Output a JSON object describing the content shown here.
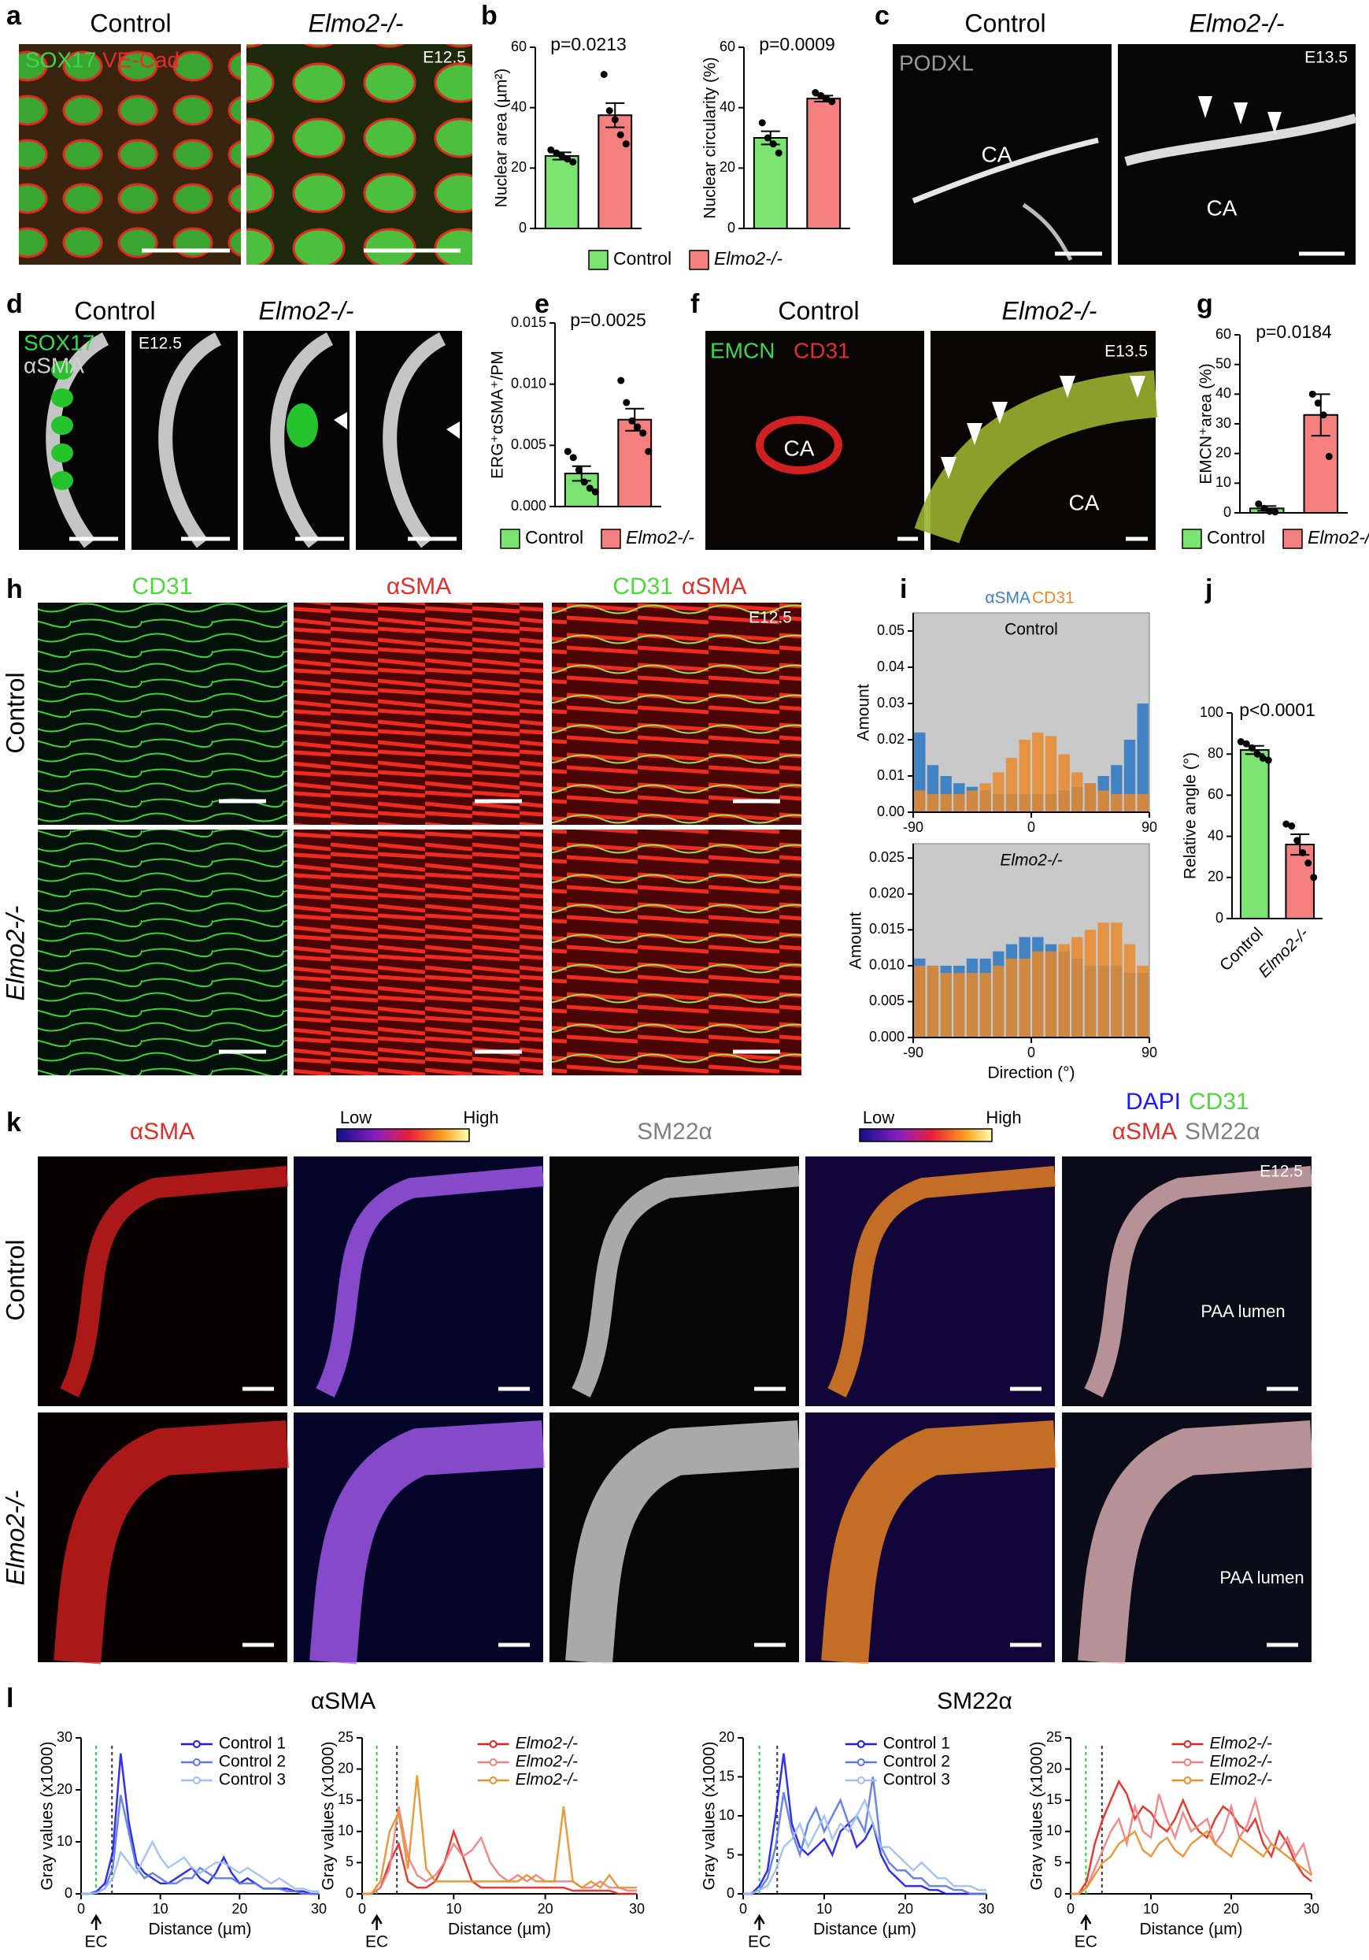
{
  "figure": {
    "panel_letters": [
      "a",
      "b",
      "c",
      "d",
      "e",
      "f",
      "g",
      "h",
      "i",
      "j",
      "k",
      "l"
    ],
    "a": {
      "control": "Control",
      "mutant": "Elmo2-/-",
      "stain1": "SOX17",
      "stain2": "VE-Cad",
      "stage": "E12.5"
    },
    "c": {
      "control": "Control",
      "mutant": "Elmo2-/-",
      "stain": "PODXL",
      "stage": "E13.5",
      "ca1": "CA",
      "ca2": "CA"
    },
    "d": {
      "control": "Control",
      "mutant": "Elmo2-/-",
      "stain1": "SOX17",
      "stain2": "αSMA",
      "stage": "E12.5"
    },
    "f": {
      "control": "Control",
      "mutant": "Elmo2-/-",
      "stain1": "EMCN",
      "stain2": "CD31",
      "stage": "E13.5",
      "ca1": "CA",
      "ca2": "CA"
    },
    "h": {
      "col1": "CD31",
      "col2": "αSMA",
      "col3a": "CD31",
      "col3b": "αSMA",
      "stage": "E12.5",
      "row1": "Control",
      "row2": "Elmo2-/-"
    },
    "k": {
      "col1": "αSMA",
      "low1": "Low",
      "high1": "High",
      "col3": "SM22α",
      "low2": "Low",
      "high2": "High",
      "col5a": "DAPI",
      "col5b": "CD31",
      "col5c": "αSMA",
      "col5d": "SM22α",
      "stage": "E12.5",
      "row1": "Control",
      "row2": "Elmo2-/-",
      "lumen1": "PAA lumen",
      "lumen2": "PAA lumen"
    },
    "l": {
      "title1": "αSMA",
      "title2": "SM22α"
    }
  },
  "chart_data": [
    {
      "type": "bar",
      "ylabel": "Nuclear area (µm²)",
      "annotation": "p=0.0213",
      "categories": [
        "Control",
        "Elmo2-/-"
      ],
      "legend": "bottom",
      "values": [
        24,
        37.5
      ],
      "errors": [
        1.2,
        4
      ],
      "colors": [
        "#7be36f",
        "#f47f7f"
      ],
      "points": [
        [
          26,
          25,
          24,
          23,
          22
        ],
        [
          51,
          39,
          36,
          31,
          28
        ]
      ],
      "ylim": [
        0,
        60
      ],
      "yticks": [
        0,
        20,
        40,
        60
      ]
    },
    {
      "type": "bar",
      "ylabel": "Nuclear circularity (%)",
      "annotation": "p=0.0009",
      "values": [
        30,
        43
      ],
      "errors": [
        2.2,
        1
      ],
      "colors": [
        "#7be36f",
        "#f47f7f"
      ],
      "points": [
        [
          35,
          30,
          28,
          25
        ],
        [
          45,
          44,
          43,
          42
        ]
      ],
      "ylim": [
        0,
        60
      ],
      "yticks": [
        0,
        20,
        40,
        60
      ]
    },
    {
      "type": "bar",
      "ylabel": "ERG⁺αSMA⁺/PM",
      "annotation": "p=0.0025",
      "categories": [
        "Control",
        "Elmo2-/-"
      ],
      "legend": "bottom",
      "values": [
        0.0027,
        0.0071
      ],
      "errors": [
        0.0006,
        0.0009
      ],
      "colors": [
        "#7be36f",
        "#f47f7f"
      ],
      "points": [
        [
          0.0045,
          0.004,
          0.003,
          0.002,
          0.0015,
          0.0012
        ],
        [
          0.0103,
          0.0085,
          0.007,
          0.0065,
          0.006,
          0.0045
        ]
      ],
      "ylim": [
        0,
        0.015
      ],
      "yticks": [
        {
          "value": 0,
          "label": "0.000"
        },
        0.005,
        {
          "value": 0.01,
          "label": "0.010"
        },
        0.015
      ]
    },
    {
      "type": "bar",
      "ylabel": "EMCN⁺area (%)",
      "annotation": "p=0.0184",
      "categories": [
        "Control",
        "Elmo2-/-"
      ],
      "legend": "bottom",
      "values": [
        1.5,
        33
      ],
      "errors": [
        0.8,
        7
      ],
      "colors": [
        "#7be36f",
        "#f47f7f"
      ],
      "points": [
        [
          3,
          1.5,
          0.5,
          0.3
        ],
        [
          40,
          37,
          33,
          19
        ]
      ],
      "ylim": [
        0,
        60
      ],
      "yticks": [
        0,
        10,
        20,
        30,
        40,
        50,
        60
      ]
    },
    {
      "type": "bar",
      "ylabel": "Relative angle (°)",
      "annotation": "p<0.0001",
      "categories": [
        "Control",
        "Elmo2-/-"
      ],
      "values": [
        82,
        36
      ],
      "errors": [
        2,
        5
      ],
      "colors": [
        "#7be36f",
        "#f47f7f"
      ],
      "points": [
        [
          86,
          85,
          83,
          80,
          78,
          77
        ],
        [
          46,
          45,
          38,
          32,
          27,
          20
        ]
      ],
      "ylim": [
        0,
        100
      ],
      "yticks": [
        0,
        20,
        40,
        60,
        80,
        100
      ]
    },
    {
      "type": "histogram",
      "title": "Control",
      "ylabel": "Amount",
      "legend": "top",
      "bins": [
        -90,
        -80,
        -70,
        -60,
        -50,
        -40,
        -30,
        -20,
        -10,
        0,
        10,
        20,
        30,
        40,
        50,
        60,
        70,
        80,
        90
      ],
      "series": [
        {
          "name": "αSMA",
          "color": "#3b7fc4",
          "values": [
            0.022,
            0.013,
            0.01,
            0.008,
            0.007,
            0.006,
            0.005,
            0.005,
            0.005,
            0.005,
            0.005,
            0.006,
            0.007,
            0.008,
            0.01,
            0.013,
            0.02,
            0.03
          ]
        },
        {
          "name": "CD31",
          "color": "#e8892b",
          "values": [
            0.006,
            0.005,
            0.005,
            0.005,
            0.006,
            0.008,
            0.011,
            0.015,
            0.02,
            0.022,
            0.021,
            0.016,
            0.011,
            0.008,
            0.006,
            0.005,
            0.005,
            0.005
          ]
        }
      ],
      "xlim": [
        -90,
        90
      ],
      "xticks": [
        -90,
        0,
        90
      ],
      "ylim": [
        0,
        0.055
      ],
      "yticks": [
        {
          "value": 0,
          "label": "0.00"
        },
        0.01,
        0.02,
        0.03,
        0.04,
        0.05
      ]
    },
    {
      "type": "histogram",
      "title": "Elmo2-/-",
      "ylabel": "Amount",
      "xlabel": "Direction (°)",
      "bins": [
        -90,
        -80,
        -70,
        -60,
        -50,
        -40,
        -30,
        -20,
        -10,
        0,
        10,
        20,
        30,
        40,
        50,
        60,
        70,
        80,
        90
      ],
      "series": [
        {
          "color": "#3b7fc4",
          "values": [
            0.011,
            0.01,
            0.01,
            0.01,
            0.011,
            0.011,
            0.012,
            0.013,
            0.014,
            0.014,
            0.013,
            0.012,
            0.011,
            0.01,
            0.01,
            0.01,
            0.009,
            0.009
          ]
        },
        {
          "color": "#e8892b",
          "values": [
            0.01,
            0.01,
            0.009,
            0.009,
            0.009,
            0.009,
            0.01,
            0.011,
            0.011,
            0.012,
            0.012,
            0.013,
            0.014,
            0.015,
            0.016,
            0.016,
            0.013,
            0.01
          ]
        }
      ],
      "xlim": [
        -90,
        90
      ],
      "xticks": [
        -90,
        0,
        90
      ],
      "ylim": [
        0,
        0.027
      ],
      "yticks": [
        {
          "value": 0,
          "label": "0.000"
        },
        0.005,
        {
          "value": 0.01,
          "label": "0.010"
        },
        0.015,
        {
          "value": 0.02,
          "label": "0.020"
        },
        0.025
      ]
    },
    {
      "type": "line",
      "ylabel": "Gray values (x1000)",
      "xlabel": "Distance (µm)",
      "annotation": "EC",
      "x": [
        0,
        1,
        2,
        3,
        4,
        5,
        6,
        7,
        8,
        9,
        10,
        11,
        12,
        13,
        14,
        15,
        16,
        17,
        18,
        19,
        20,
        21,
        22,
        23,
        24,
        25,
        26,
        27,
        28,
        29,
        30
      ],
      "series": [
        {
          "name": "Control 1",
          "color": "#1a1aee",
          "values": [
            0,
            0,
            0.5,
            2,
            8,
            27,
            14,
            6,
            4,
            3,
            2,
            2,
            3,
            4,
            5,
            3,
            2,
            4,
            7,
            4,
            2,
            3,
            2,
            1,
            1,
            1,
            1,
            0.5,
            0.5,
            0,
            0
          ]
        },
        {
          "name": "Control 2",
          "color": "#5a78e8",
          "values": [
            0,
            0,
            0.3,
            1,
            5,
            19,
            12,
            5,
            3,
            4,
            3,
            2,
            2,
            3,
            3,
            5,
            4,
            3,
            3,
            3,
            2,
            2,
            2,
            1,
            1,
            1,
            0.5,
            0.5,
            0,
            0,
            0
          ]
        },
        {
          "name": "Control 3",
          "color": "#9fbff0",
          "values": [
            0,
            0,
            0.2,
            1,
            3,
            8,
            6,
            4,
            7,
            10,
            7,
            5,
            6,
            7,
            5,
            4,
            5,
            6,
            6,
            5,
            4,
            5,
            4,
            3,
            2,
            3,
            2,
            1,
            1,
            0.5,
            0.5
          ]
        }
      ],
      "vlines": [
        {
          "x": 1.9,
          "color": "#2ecc40"
        },
        {
          "x": 3.9,
          "color": "#333333"
        }
      ],
      "xlim": [
        0,
        30
      ],
      "xticks": [
        0,
        10,
        20,
        30
      ],
      "ylim": [
        0,
        30
      ],
      "yticks": [
        0,
        10,
        20,
        30
      ]
    },
    {
      "type": "line",
      "ylabel": "Gray values (x1000)",
      "xlabel": "Distance (µm)",
      "annotation": "EC",
      "x": [
        0,
        1,
        2,
        3,
        4,
        5,
        6,
        7,
        8,
        9,
        10,
        11,
        12,
        13,
        14,
        15,
        16,
        17,
        18,
        19,
        20,
        21,
        22,
        23,
        24,
        25,
        26,
        27,
        28,
        29,
        30
      ],
      "series": [
        {
          "name": "Elmo2-/-",
          "color": "#e8231f",
          "values": [
            0,
            0,
            1,
            5,
            8,
            2,
            1,
            1,
            2,
            5,
            10,
            6,
            2,
            1,
            1,
            1,
            1,
            1,
            1,
            1,
            1,
            1,
            1,
            0.5,
            0.5,
            0.5,
            0.5,
            0.5,
            0,
            0,
            0
          ]
        },
        {
          "name": "Elmo2-/-",
          "color": "#f08080",
          "values": [
            0,
            0,
            1,
            4,
            14,
            6,
            3,
            2,
            3,
            5,
            8,
            6,
            7,
            9,
            5,
            3,
            2,
            3,
            2,
            3,
            2,
            2,
            2,
            2,
            1,
            1,
            2,
            1,
            1,
            0.5,
            0.5
          ]
        },
        {
          "name": "Elmo2-/-",
          "color": "#e8902a",
          "values": [
            0,
            0,
            2,
            10,
            13,
            4,
            19,
            4,
            2,
            2,
            2,
            2,
            2,
            2,
            2,
            2,
            2,
            2,
            3,
            2,
            2,
            2,
            14,
            2,
            1,
            2,
            1,
            3,
            1,
            1,
            1
          ]
        }
      ],
      "vlines": [
        {
          "x": 1.6,
          "color": "#2ecc40"
        },
        {
          "x": 3.8,
          "color": "#333333"
        }
      ],
      "xlim": [
        0,
        30
      ],
      "xticks": [
        0,
        10,
        20,
        30
      ],
      "ylim": [
        0,
        25
      ],
      "yticks": [
        0,
        5,
        10,
        15,
        20,
        25
      ]
    },
    {
      "type": "line",
      "ylabel": "Gray values (x1000)",
      "xlabel": "Distance (µm)",
      "annotation": "EC",
      "x": [
        0,
        1,
        2,
        3,
        4,
        5,
        6,
        7,
        8,
        9,
        10,
        11,
        12,
        13,
        14,
        15,
        16,
        17,
        18,
        19,
        20,
        21,
        22,
        23,
        24,
        25,
        26,
        27,
        28,
        29,
        30
      ],
      "series": [
        {
          "name": "Control 1",
          "color": "#1a1aee",
          "values": [
            0,
            0,
            1,
            3,
            10,
            18,
            9,
            6,
            5,
            6,
            7,
            5,
            8,
            9,
            6,
            7,
            9,
            5,
            3,
            2,
            1,
            1,
            1,
            0.5,
            0.5,
            0,
            0,
            0,
            0,
            0,
            0
          ]
        },
        {
          "name": "Control 2",
          "color": "#5a78e8",
          "values": [
            0,
            0,
            0.5,
            2,
            6,
            13,
            8,
            5,
            9,
            11,
            8,
            10,
            12,
            9,
            10,
            8,
            15,
            6,
            4,
            3,
            3,
            2,
            2,
            1,
            1,
            1,
            0.5,
            0.5,
            0,
            0,
            0
          ]
        },
        {
          "name": "Control 3",
          "color": "#9fbff0",
          "values": [
            0,
            0,
            0.5,
            1,
            3,
            6,
            7,
            9,
            6,
            8,
            10,
            7,
            9,
            8,
            10,
            12,
            9,
            6,
            6,
            5,
            4,
            3,
            4,
            3,
            2,
            2,
            1,
            1,
            1,
            0.5,
            0.5
          ]
        }
      ],
      "vlines": [
        {
          "x": 2,
          "color": "#2ecc40"
        },
        {
          "x": 4.2,
          "color": "#333333"
        }
      ],
      "xlim": [
        0,
        30
      ],
      "xticks": [
        0,
        10,
        20,
        30
      ],
      "ylim": [
        0,
        20
      ],
      "yticks": [
        0,
        5,
        10,
        15,
        20
      ]
    },
    {
      "type": "line",
      "ylabel": "Gray values (x1000)",
      "xlabel": "Distance (µm)",
      "annotation": "EC",
      "x": [
        0,
        1,
        2,
        3,
        4,
        5,
        6,
        7,
        8,
        9,
        10,
        11,
        12,
        13,
        14,
        15,
        16,
        17,
        18,
        19,
        20,
        21,
        22,
        23,
        24,
        25,
        26,
        27,
        28,
        29,
        30
      ],
      "series": [
        {
          "name": "Elmo2-/-",
          "color": "#e8231f",
          "values": [
            0,
            0,
            2,
            8,
            12,
            15,
            18,
            16,
            12,
            14,
            13,
            11,
            10,
            12,
            15,
            12,
            10,
            9,
            12,
            14,
            13,
            11,
            10,
            12,
            8,
            6,
            10,
            8,
            5,
            3,
            2
          ]
        },
        {
          "name": "Elmo2-/-",
          "color": "#f08080",
          "values": [
            0,
            0,
            1,
            4,
            7,
            10,
            12,
            8,
            14,
            10,
            9,
            16,
            12,
            9,
            13,
            10,
            11,
            12,
            8,
            10,
            14,
            9,
            11,
            15,
            10,
            8,
            7,
            9,
            6,
            8,
            3
          ]
        },
        {
          "name": "Elmo2-/-",
          "color": "#e8902a",
          "values": [
            0,
            0,
            1,
            3,
            5,
            6,
            8,
            9,
            10,
            7,
            6,
            8,
            9,
            7,
            6,
            8,
            9,
            10,
            8,
            7,
            6,
            9,
            8,
            7,
            6,
            8,
            7,
            6,
            5,
            4,
            3
          ]
        }
      ],
      "vlines": [
        {
          "x": 1.9,
          "color": "#2ecc40"
        },
        {
          "x": 3.9,
          "color": "#333333"
        }
      ],
      "xlim": [
        0,
        30
      ],
      "xticks": [
        0,
        10,
        20,
        30
      ],
      "ylim": [
        0,
        25
      ],
      "yticks": [
        0,
        5,
        10,
        15,
        20,
        25
      ]
    }
  ]
}
